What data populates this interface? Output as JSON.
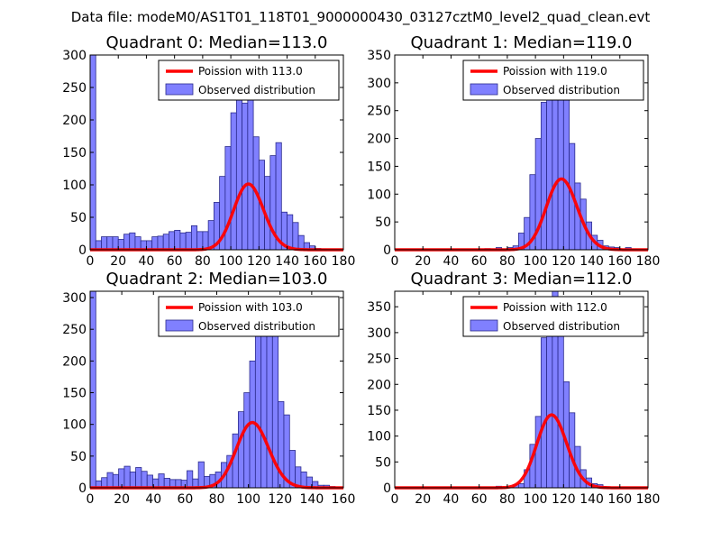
{
  "suptitle": "Data file: modeM0/AS1T01_118T01_9000000430_03127cztM0_level2_quad_clean.evt",
  "colors": {
    "bar_fill": "#8080ff",
    "bar_edge": "#2a2a8c",
    "curve": "#ff0000",
    "axis": "#000000"
  },
  "chart_data": [
    {
      "type": "bar",
      "title": "Quadrant 0: Median=113.0",
      "bin_width": 4,
      "bins": [
        0,
        4,
        8,
        12,
        16,
        20,
        24,
        28,
        32,
        36,
        40,
        44,
        48,
        52,
        56,
        60,
        64,
        68,
        72,
        76,
        80,
        84,
        88,
        92,
        96,
        100,
        104,
        108,
        112,
        116,
        120,
        124,
        128,
        132,
        136,
        140,
        144,
        148,
        152,
        156,
        160,
        164,
        168,
        172,
        176
      ],
      "values": [
        300,
        14,
        20,
        20,
        20,
        16,
        24,
        26,
        20,
        14,
        14,
        20,
        21,
        24,
        28,
        30,
        26,
        27,
        37,
        28,
        28,
        45,
        73,
        113,
        159,
        211,
        240,
        226,
        257,
        174,
        138,
        113,
        145,
        165,
        58,
        54,
        42,
        22,
        11,
        6,
        2,
        1,
        0,
        0,
        0
      ],
      "poisson": {
        "label": "Poission with 113.0",
        "lambda": 113.0,
        "scale": 2700
      },
      "legend": {
        "line_label": "Poission with 113.0",
        "bar_label": "Observed distribution",
        "position": "upper-right"
      },
      "xlim": [
        0,
        180
      ],
      "ylim": [
        0,
        300
      ],
      "xticks": [
        0,
        20,
        40,
        60,
        80,
        100,
        120,
        140,
        160,
        180
      ],
      "yticks": [
        0,
        50,
        100,
        150,
        200,
        250,
        300
      ]
    },
    {
      "type": "bar",
      "title": "Quadrant 1: Median=119.0",
      "bin_width": 4,
      "bins": [
        0,
        4,
        8,
        12,
        16,
        20,
        24,
        28,
        32,
        36,
        40,
        44,
        48,
        52,
        56,
        60,
        64,
        68,
        72,
        76,
        80,
        84,
        88,
        92,
        96,
        100,
        104,
        108,
        112,
        116,
        120,
        124,
        128,
        132,
        136,
        140,
        144,
        148,
        152,
        156,
        160,
        164,
        168,
        172,
        176
      ],
      "values": [
        0,
        0,
        0,
        0,
        0,
        0,
        0,
        0,
        0,
        0,
        0,
        0,
        0,
        0,
        0,
        0,
        2,
        0,
        4,
        0,
        4,
        7,
        30,
        58,
        135,
        200,
        265,
        291,
        300,
        291,
        318,
        191,
        120,
        91,
        50,
        26,
        17,
        7,
        5,
        4,
        1,
        4,
        1,
        0,
        0
      ],
      "poisson": {
        "label": "Poission with 119.0",
        "lambda": 119.0,
        "scale": 3480
      },
      "legend": {
        "line_label": "Poission with 119.0",
        "bar_label": "Observed distribution",
        "position": "upper-right"
      },
      "xlim": [
        0,
        180
      ],
      "ylim": [
        0,
        350
      ],
      "xticks": [
        0,
        20,
        40,
        60,
        80,
        100,
        120,
        140,
        160,
        180
      ],
      "yticks": [
        0,
        50,
        100,
        150,
        200,
        250,
        300,
        350
      ]
    },
    {
      "type": "bar",
      "title": "Quadrant 2: Median=103.0",
      "bin_width": 3.6,
      "bins": [
        0,
        3.6,
        7.2,
        10.8,
        14.4,
        18,
        21.6,
        25.2,
        28.8,
        32.4,
        36,
        39.6,
        43.2,
        46.8,
        50.4,
        54,
        57.6,
        61.2,
        64.8,
        68.4,
        72,
        75.6,
        79.2,
        82.8,
        86.4,
        90,
        93.6,
        97.2,
        100.8,
        104.4,
        108,
        111.6,
        115.2,
        118.8,
        122.4,
        126,
        129.6,
        133.2,
        136.8,
        140.4,
        144,
        147.6,
        151.2,
        154.8,
        158.4
      ],
      "values": [
        310,
        11,
        16,
        24,
        21,
        30,
        34,
        25,
        32,
        26,
        20,
        14,
        22,
        15,
        13,
        13,
        12,
        27,
        14,
        41,
        18,
        21,
        25,
        40,
        51,
        85,
        120,
        150,
        200,
        280,
        280,
        270,
        256,
        136,
        115,
        59,
        33,
        25,
        17,
        10,
        4,
        4,
        2,
        0,
        0
      ],
      "poisson": {
        "label": "Poission with 103.0",
        "lambda": 103.0,
        "scale": 2620
      },
      "legend": {
        "line_label": "Poission with 103.0",
        "bar_label": "Observed distribution",
        "position": "upper-right"
      },
      "xlim": [
        0,
        160
      ],
      "ylim": [
        0,
        310
      ],
      "xticks": [
        0,
        20,
        40,
        60,
        80,
        100,
        120,
        140,
        160
      ],
      "yticks": [
        0,
        50,
        100,
        150,
        200,
        250,
        300
      ]
    },
    {
      "type": "bar",
      "title": "Quadrant 3: Median=112.0",
      "bin_width": 4,
      "bins": [
        0,
        4,
        8,
        12,
        16,
        20,
        24,
        28,
        32,
        36,
        40,
        44,
        48,
        52,
        56,
        60,
        64,
        68,
        72,
        76,
        80,
        84,
        88,
        92,
        96,
        100,
        104,
        108,
        112,
        116,
        120,
        124,
        128,
        132,
        136,
        140,
        144,
        148,
        152,
        156,
        160,
        164,
        168,
        172,
        176
      ],
      "values": [
        0,
        0,
        0,
        0,
        0,
        0,
        0,
        0,
        0,
        0,
        0,
        0,
        0,
        0,
        0,
        0,
        0,
        0,
        3,
        0,
        0,
        6,
        8,
        35,
        84,
        138,
        290,
        347,
        380,
        347,
        205,
        145,
        80,
        35,
        19,
        8,
        6,
        2,
        0,
        0,
        0,
        0,
        0,
        0,
        0
      ],
      "poisson": {
        "label": "Poission with 112.0",
        "lambda": 112.0,
        "scale": 3740
      },
      "legend": {
        "line_label": "Poission with 112.0",
        "bar_label": "Observed distribution",
        "position": "upper-right"
      },
      "xlim": [
        0,
        180
      ],
      "ylim": [
        0,
        380
      ],
      "xticks": [
        0,
        20,
        40,
        60,
        80,
        100,
        120,
        140,
        160,
        180
      ],
      "yticks": [
        0,
        50,
        100,
        150,
        200,
        250,
        300,
        350
      ]
    }
  ]
}
